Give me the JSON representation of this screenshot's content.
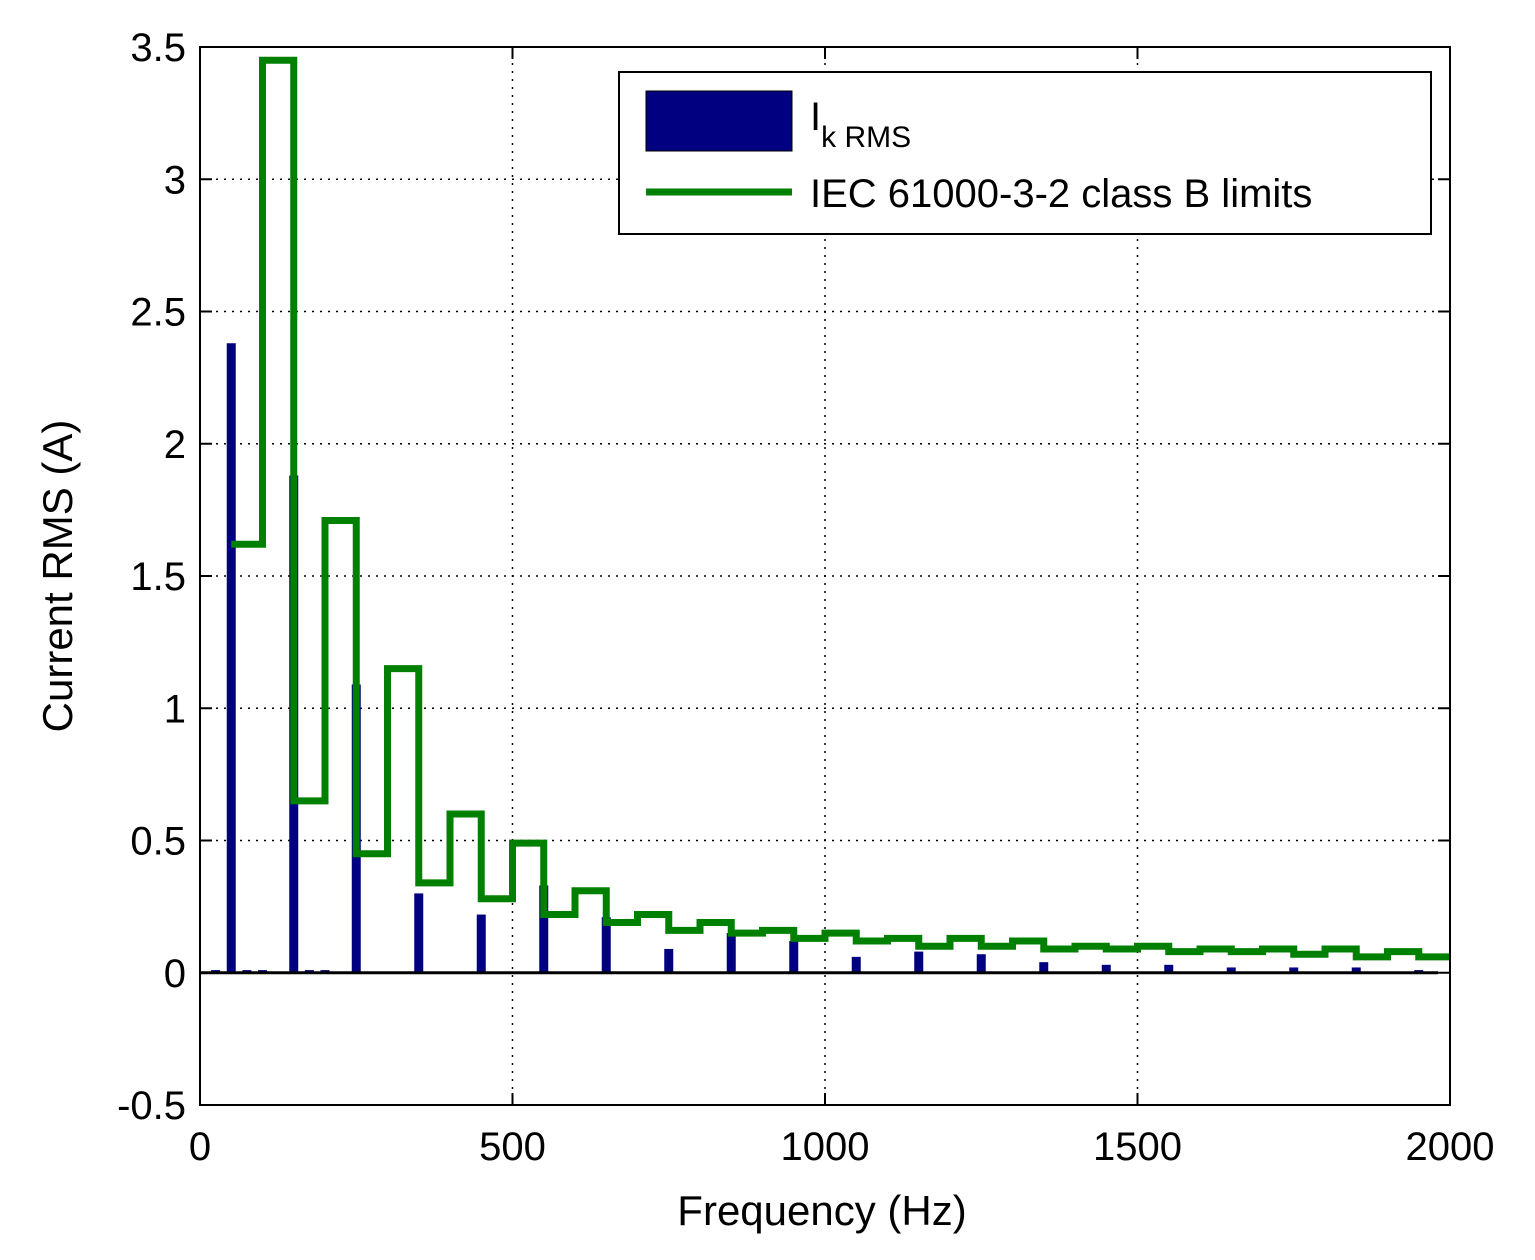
{
  "chart_data": {
    "type": "bar",
    "title": "",
    "xlabel": "Frequency (Hz)",
    "ylabel": "Current RMS (A)",
    "xlim": [
      0,
      2000
    ],
    "ylim": [
      -0.5,
      3.5
    ],
    "xticks": [
      "0",
      "500",
      "1000",
      "1500",
      "2000"
    ],
    "yticks": [
      "-0.5",
      "0",
      "0.5",
      "1",
      "1.5",
      "2",
      "2.5",
      "3",
      "3.5"
    ],
    "grid": true,
    "legend_position": "top-right",
    "series": [
      {
        "name_main": "I",
        "name_sub": "k RMS",
        "type": "bar",
        "color": "#000080",
        "x": [
          25,
          50,
          75,
          100,
          125,
          150,
          175,
          200,
          225,
          250,
          275,
          300,
          325,
          350,
          375,
          400,
          425,
          450,
          475,
          500,
          525,
          550,
          575,
          600,
          625,
          650,
          675,
          700,
          725,
          750,
          775,
          800,
          825,
          850,
          875,
          900,
          925,
          950,
          975,
          1000,
          1025,
          1050,
          1075,
          1100,
          1125,
          1150,
          1175,
          1200,
          1225,
          1250,
          1275,
          1300,
          1325,
          1350,
          1375,
          1400,
          1425,
          1450,
          1475,
          1500,
          1525,
          1550,
          1575,
          1600,
          1625,
          1650,
          1675,
          1700,
          1725,
          1750,
          1775,
          1800,
          1825,
          1850,
          1875,
          1900,
          1925,
          1950,
          1975
        ],
        "values": [
          0.01,
          2.38,
          0.01,
          0.01,
          0.0,
          1.88,
          0.01,
          0.01,
          0.0,
          1.09,
          0.0,
          0.0,
          0.0,
          0.3,
          0.0,
          0.0,
          0.0,
          0.22,
          0.0,
          0.0,
          0.0,
          0.33,
          0.0,
          0.0,
          0.0,
          0.21,
          0.0,
          0.0,
          0.0,
          0.09,
          0.0,
          0.0,
          0.0,
          0.15,
          0.0,
          0.0,
          0.0,
          0.12,
          0.0,
          0.0,
          0.0,
          0.06,
          0.0,
          0.0,
          0.0,
          0.08,
          0.0,
          0.0,
          0.0,
          0.07,
          0.0,
          0.0,
          0.0,
          0.04,
          0.0,
          0.0,
          0.0,
          0.03,
          0.0,
          0.0,
          0.0,
          0.03,
          0.0,
          0.0,
          0.0,
          0.02,
          0.0,
          0.0,
          0.0,
          0.02,
          0.0,
          0.0,
          0.0,
          0.02,
          0.0,
          0.0,
          0.0,
          0.01,
          0.0
        ]
      },
      {
        "name": "IEC 61000-3-2 class B limits",
        "type": "step",
        "color": "#008000",
        "x": [
          75,
          125,
          175,
          225,
          275,
          325,
          375,
          425,
          475,
          525,
          575,
          625,
          675,
          725,
          775,
          825,
          875,
          925,
          975,
          1025,
          1075,
          1125,
          1175,
          1225,
          1275,
          1325,
          1375,
          1425,
          1475,
          1525,
          1575,
          1625,
          1675,
          1725,
          1775,
          1825,
          1875,
          1925,
          1975
        ],
        "values": [
          1.62,
          3.45,
          0.65,
          1.71,
          0.45,
          1.15,
          0.34,
          0.6,
          0.28,
          0.49,
          0.22,
          0.31,
          0.19,
          0.22,
          0.16,
          0.19,
          0.15,
          0.16,
          0.13,
          0.15,
          0.12,
          0.13,
          0.1,
          0.13,
          0.1,
          0.12,
          0.09,
          0.1,
          0.09,
          0.1,
          0.08,
          0.09,
          0.08,
          0.09,
          0.07,
          0.09,
          0.06,
          0.08,
          0.06
        ]
      }
    ]
  }
}
